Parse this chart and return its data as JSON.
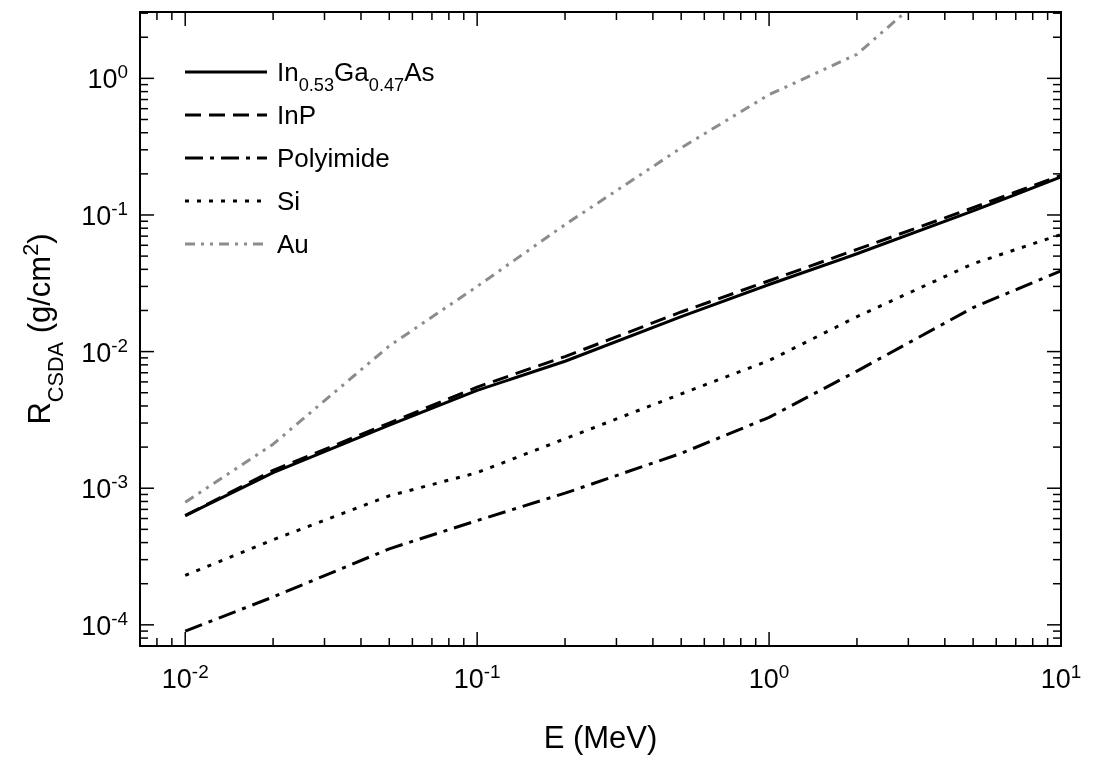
{
  "chart_data": {
    "type": "line",
    "xlabel": "E (MeV)",
    "ylabel": "R$_{CSDA}$ (g/cm$^{2}$)",
    "log": "xy",
    "legend": "top left",
    "grid": false,
    "xlim": [
      0.007,
      10
    ],
    "ylim": [
      7e-05,
      3.06
    ],
    "xticks": [
      {
        "value": 0.007,
        "label": null
      },
      {
        "value": 0.008,
        "label": null
      },
      {
        "value": 0.009,
        "label": null
      },
      {
        "value": 0.01,
        "label": "10$^{-2}$"
      },
      {
        "value": 0.02,
        "label": null
      },
      {
        "value": 0.03,
        "label": null
      },
      {
        "value": 0.04,
        "label": null
      },
      {
        "value": 0.05,
        "label": null
      },
      {
        "value": 0.06,
        "label": null
      },
      {
        "value": 0.07,
        "label": null
      },
      {
        "value": 0.08,
        "label": null
      },
      {
        "value": 0.09,
        "label": null
      },
      {
        "value": 0.1,
        "label": "10$^{-1}$"
      },
      {
        "value": 0.2,
        "label": null
      },
      {
        "value": 0.3,
        "label": null
      },
      {
        "value": 0.4,
        "label": null
      },
      {
        "value": 0.5,
        "label": null
      },
      {
        "value": 0.6,
        "label": null
      },
      {
        "value": 0.7,
        "label": null
      },
      {
        "value": 0.8,
        "label": null
      },
      {
        "value": 0.9,
        "label": null
      },
      {
        "value": 1,
        "label": "10$^{0}$"
      },
      {
        "value": 2,
        "label": null
      },
      {
        "value": 3,
        "label": null
      },
      {
        "value": 4,
        "label": null
      },
      {
        "value": 5,
        "label": null
      },
      {
        "value": 6,
        "label": null
      },
      {
        "value": 7,
        "label": null
      },
      {
        "value": 8,
        "label": null
      },
      {
        "value": 9,
        "label": null
      },
      {
        "value": 10,
        "label": "10$^{1}$"
      }
    ],
    "yticks": [
      {
        "value": 8e-05,
        "label": null
      },
      {
        "value": 9e-05,
        "label": null
      },
      {
        "value": 0.0001,
        "label": "10$^{-4}$"
      },
      {
        "value": 0.0002,
        "label": null
      },
      {
        "value": 0.0003,
        "label": null
      },
      {
        "value": 0.0004,
        "label": null
      },
      {
        "value": 0.0005,
        "label": null
      },
      {
        "value": 0.0006,
        "label": null
      },
      {
        "value": 0.0007,
        "label": null
      },
      {
        "value": 0.0008,
        "label": null
      },
      {
        "value": 0.0009,
        "label": null
      },
      {
        "value": 0.001,
        "label": "10$^{-3}$"
      },
      {
        "value": 0.002,
        "label": null
      },
      {
        "value": 0.003,
        "label": null
      },
      {
        "value": 0.004,
        "label": null
      },
      {
        "value": 0.005,
        "label": null
      },
      {
        "value": 0.006,
        "label": null
      },
      {
        "value": 0.007,
        "label": null
      },
      {
        "value": 0.008,
        "label": null
      },
      {
        "value": 0.009,
        "label": null
      },
      {
        "value": 0.01,
        "label": "10$^{-2}$"
      },
      {
        "value": 0.02,
        "label": null
      },
      {
        "value": 0.03,
        "label": null
      },
      {
        "value": 0.04,
        "label": null
      },
      {
        "value": 0.05,
        "label": null
      },
      {
        "value": 0.06,
        "label": null
      },
      {
        "value": 0.07,
        "label": null
      },
      {
        "value": 0.08,
        "label": null
      },
      {
        "value": 0.09,
        "label": null
      },
      {
        "value": 0.1,
        "label": "10$^{-1}$"
      },
      {
        "value": 0.2,
        "label": null
      },
      {
        "value": 0.3,
        "label": null
      },
      {
        "value": 0.4,
        "label": null
      },
      {
        "value": 0.5,
        "label": null
      },
      {
        "value": 0.6,
        "label": null
      },
      {
        "value": 0.7,
        "label": null
      },
      {
        "value": 0.8,
        "label": null
      },
      {
        "value": 0.9,
        "label": null
      },
      {
        "value": 1,
        "label": "10$^{0}$"
      },
      {
        "value": 2,
        "label": null
      },
      {
        "value": 3,
        "label": null
      }
    ],
    "x": [
      0.01,
      0.02,
      0.05,
      0.1,
      0.2,
      0.5,
      1,
      2,
      5,
      10
    ],
    "series": [
      {
        "name": "In$_{0.53}$Ga$_{0.47}$As",
        "color": "#000000",
        "line_style": "solid",
        "values": [
          0.00063,
          0.0013,
          0.0029,
          0.0052,
          0.0085,
          0.018,
          0.031,
          0.052,
          0.107,
          0.19
        ]
      },
      {
        "name": "InP",
        "color": "#000000",
        "line_style": "dashed",
        "values": [
          0.00063,
          0.00135,
          0.003,
          0.0055,
          0.0092,
          0.0195,
          0.033,
          0.056,
          0.113,
          0.195
        ]
      },
      {
        "name": "Polyimide",
        "color": "#000000",
        "line_style": "dashdot",
        "values": [
          9e-05,
          0.00016,
          0.00036,
          0.00058,
          0.00092,
          0.0018,
          0.0033,
          0.0072,
          0.021,
          0.039
        ]
      },
      {
        "name": "Si",
        "color": "#000000",
        "line_style": "dotted",
        "values": [
          0.00023,
          0.00042,
          0.00088,
          0.0013,
          0.0023,
          0.0049,
          0.0086,
          0.018,
          0.044,
          0.072
        ]
      },
      {
        "name": "Au",
        "color": "#8c8c8c",
        "line_style": "dashdotdot",
        "x": [
          0.01,
          0.02,
          0.05,
          0.1,
          0.2,
          0.5,
          1,
          2,
          2.9
        ],
        "values": [
          0.00079,
          0.0021,
          0.011,
          0.03,
          0.085,
          0.31,
          0.76,
          1.5,
          3.0
        ]
      }
    ]
  }
}
